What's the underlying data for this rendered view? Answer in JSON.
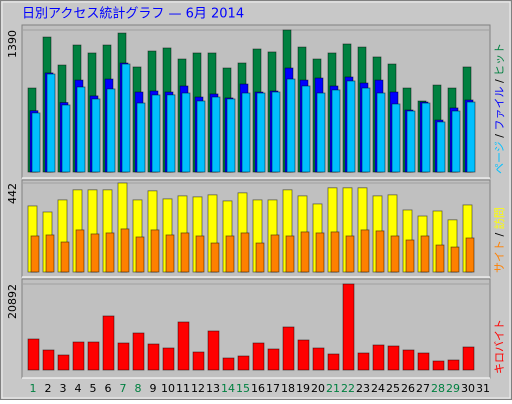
{
  "chart_data": [
    {
      "type": "bar",
      "title": "日別アクセス統計グラフ — 6月 2014",
      "ylim": [
        0,
        1390
      ],
      "yticks": [
        1390
      ],
      "series": [
        {
          "name": "ヒット",
          "color": "#008040",
          "values": [
            822,
            1321,
            1047,
            1243,
            1165,
            1243,
            1360,
            1028,
            1184,
            1214,
            1106,
            1165,
            1165,
            1018,
            1067,
            1204,
            1175,
            1390,
            1223,
            1106,
            1165,
            1253,
            1223,
            1126,
            1057,
            822,
            695,
            851,
            822,
            1028,
            null
          ]
        },
        {
          "name": "ファイル",
          "color": "#0000ff",
          "values": [
            600,
            970,
            680,
            900,
            745,
            910,
            1067,
            783,
            793,
            783,
            842,
            734,
            764,
            725,
            861,
            783,
            793,
            1018,
            900,
            920,
            842,
            930,
            871,
            900,
            783,
            607,
            685,
            509,
            627,
            705,
            null
          ]
        },
        {
          "name": "ページ",
          "color": "#00c0ff",
          "values": [
            578,
            959,
            656,
            832,
            715,
            813,
            1057,
            675,
            754,
            755,
            773,
            695,
            734,
            715,
            773,
            773,
            783,
            910,
            842,
            773,
            803,
            891,
            822,
            773,
            666,
            597,
            675,
            490,
            597,
            685,
            null
          ]
        }
      ]
    },
    {
      "type": "bar",
      "ylim": [
        0,
        442
      ],
      "yticks": [
        442
      ],
      "series": [
        {
          "name": "訪問",
          "color": "#ffff00",
          "values": [
            328,
            298,
            358,
            408,
            408,
            408,
            442,
            358,
            403,
            363,
            378,
            373,
            383,
            353,
            393,
            358,
            358,
            408,
            378,
            338,
            418,
            418,
            418,
            378,
            383,
            308,
            278,
            303,
            259,
            333,
            null
          ]
        },
        {
          "name": "サイト",
          "color": "#ff8000",
          "values": [
            179,
            184,
            149,
            209,
            189,
            194,
            214,
            174,
            209,
            184,
            194,
            179,
            144,
            179,
            194,
            144,
            184,
            179,
            199,
            194,
            199,
            179,
            209,
            204,
            179,
            159,
            179,
            134,
            124,
            169,
            null
          ]
        }
      ]
    },
    {
      "type": "bar",
      "ylim": [
        0,
        20892
      ],
      "yticks": [
        20892
      ],
      "categories": [
        "1",
        "2",
        "3",
        "4",
        "5",
        "6",
        "7",
        "8",
        "9",
        "10",
        "11",
        "12",
        "13",
        "14",
        "15",
        "16",
        "17",
        "18",
        "19",
        "20",
        "21",
        "22",
        "23",
        "24",
        "25",
        "26",
        "27",
        "28",
        "29",
        "30",
        "31"
      ],
      "weekend_days": [
        1,
        7,
        8,
        14,
        15,
        21,
        22,
        28,
        29
      ],
      "weekend_color": "#008040",
      "series": [
        {
          "name": "キロバイト",
          "color": "#ff0000",
          "values": [
            7533,
            4860,
            3645,
            6804,
            6804,
            13122,
            6561,
            8991,
            6318,
            5346,
            11664,
            4374,
            9477,
            2916,
            3402,
            6561,
            5103,
            10449,
            7290,
            5346,
            3888,
            20892,
            4131,
            6075,
            5832,
            4860,
            4131,
            2187,
            2430,
            5589,
            null
          ]
        }
      ]
    }
  ]
}
